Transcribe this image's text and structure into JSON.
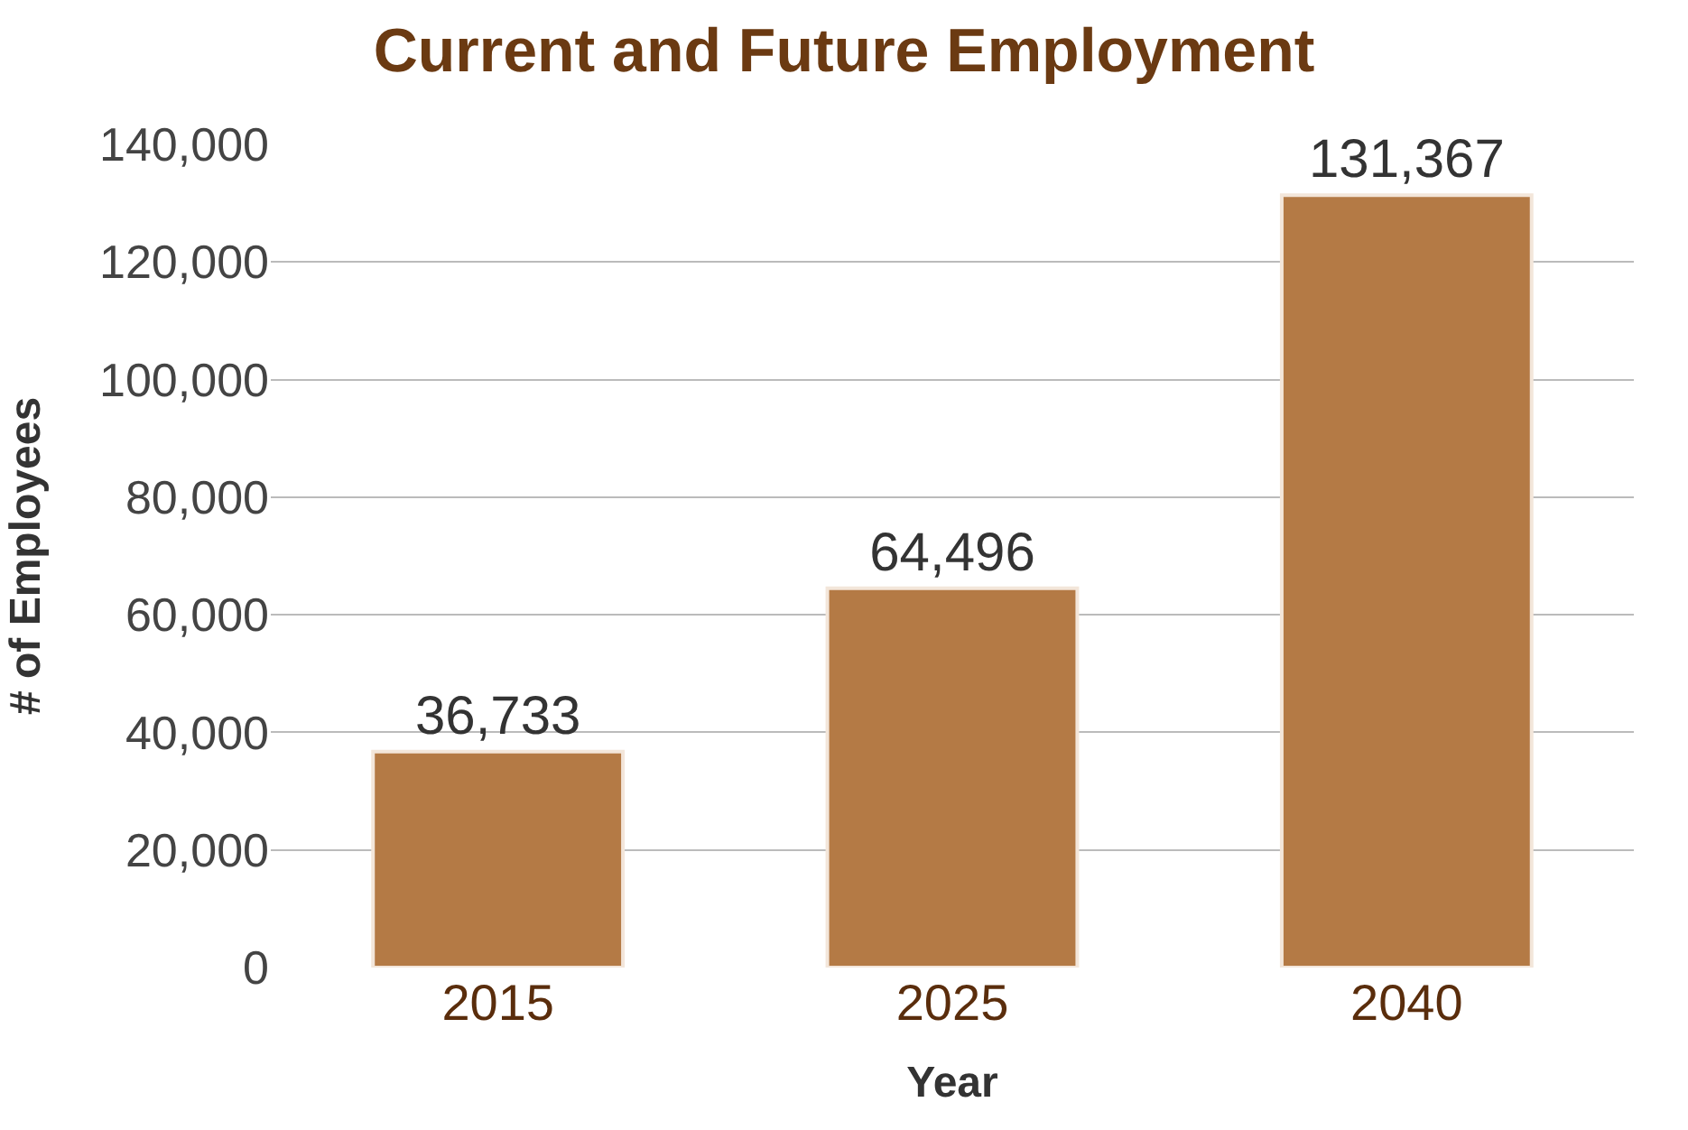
{
  "chart_data": {
    "type": "bar",
    "title": "Current and Future Employment",
    "xlabel": "Year",
    "ylabel": "# of Employees",
    "categories": [
      "2015",
      "2025",
      "2040"
    ],
    "values": [
      36733,
      64496,
      131367
    ],
    "color": "#b47a45",
    "value_labels": [
      "36,733",
      "64,496",
      "131,367"
    ],
    "ylim": [
      0,
      140000
    ],
    "yticks": [
      0,
      {
        "value": 20000,
        "label": "20,000"
      },
      {
        "value": 40000,
        "label": "40,000"
      },
      {
        "value": 60000,
        "label": "60,000"
      },
      {
        "value": 80000,
        "label": "80,000"
      },
      {
        "value": 100000,
        "label": "100,000"
      },
      {
        "value": 120000,
        "label": "120,000"
      },
      {
        "value": 140000,
        "label": "140,000"
      }
    ],
    "grid": "y"
  }
}
